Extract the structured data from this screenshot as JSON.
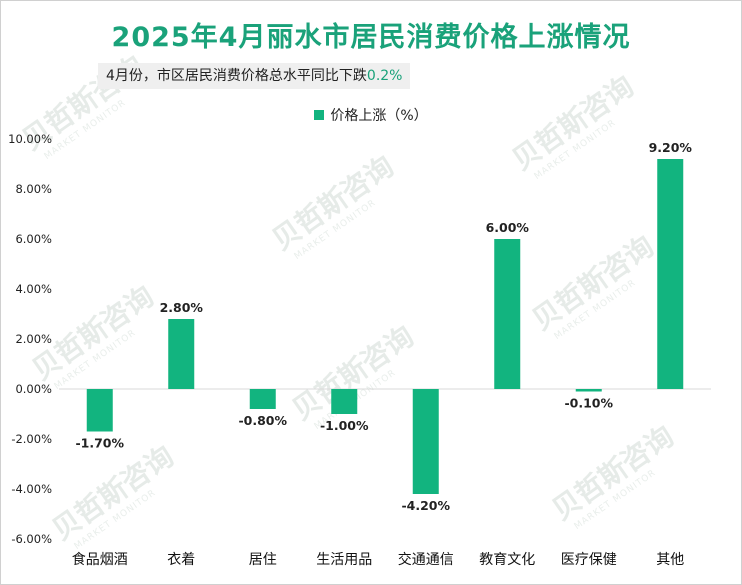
{
  "title": "2025年4月丽水市居民消费价格上涨情况",
  "subtitle": {
    "text": "4月份，市区居民消费价格总水平同比下跌",
    "highlight": "0.2%"
  },
  "watermark": {
    "text": "贝哲斯咨询",
    "sub": "MARKET MONITOR"
  },
  "colors": {
    "title": "#1aa27a",
    "bar": "#12b47f",
    "highlight": "#1aa27a",
    "axis": "#d9d9d9"
  },
  "chart_data": {
    "type": "bar",
    "title": "2025年4月丽水市居民消费价格上涨情况",
    "categories": [
      "食品烟酒",
      "衣着",
      "居住",
      "生活用品",
      "交通通信",
      "教育文化",
      "医疗保健",
      "其他"
    ],
    "series": [
      {
        "name": "价格上涨（%）",
        "values": [
          -1.7,
          2.8,
          -0.8,
          -1.0,
          -4.2,
          6.0,
          -0.1,
          9.2
        ],
        "labels": [
          "-1.70%",
          "2.80%",
          "-0.80%",
          "-1.00%",
          "-4.20%",
          "6.00%",
          "-0.10%",
          "9.20%"
        ]
      }
    ],
    "ylim": [
      -6,
      10
    ],
    "yticks": [
      10,
      8,
      6,
      4,
      2,
      0,
      -2,
      -4,
      -6
    ],
    "ytick_labels": [
      "10.00%",
      "8.00%",
      "6.00%",
      "4.00%",
      "2.00%",
      "0.00%",
      "-2.00%",
      "-4.00%",
      "-6.00%"
    ],
    "grid": false,
    "legend": "top-center"
  }
}
